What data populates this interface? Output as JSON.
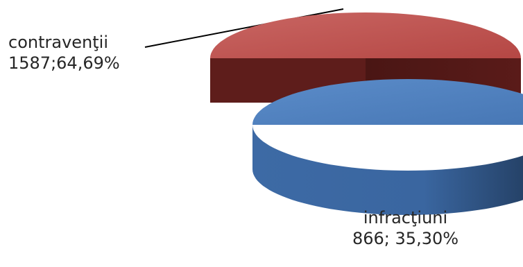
{
  "chart_data": {
    "type": "pie",
    "style": "3d-exploded",
    "categories": [
      "contravenţii",
      "infracţiuni"
    ],
    "values": [
      1587,
      866
    ],
    "percent_labels": [
      "64,69%",
      "35,30%"
    ],
    "data_labels": [
      {
        "name": "contravenţii",
        "value_text": "1587;64,69%"
      },
      {
        "name": "infracţiuni",
        "value_text": "866; 35,30%"
      }
    ],
    "colors": {
      "contravenţii": "#C0504D",
      "infracţiuni": "#4F81BD"
    },
    "title": "",
    "legend": "none"
  }
}
